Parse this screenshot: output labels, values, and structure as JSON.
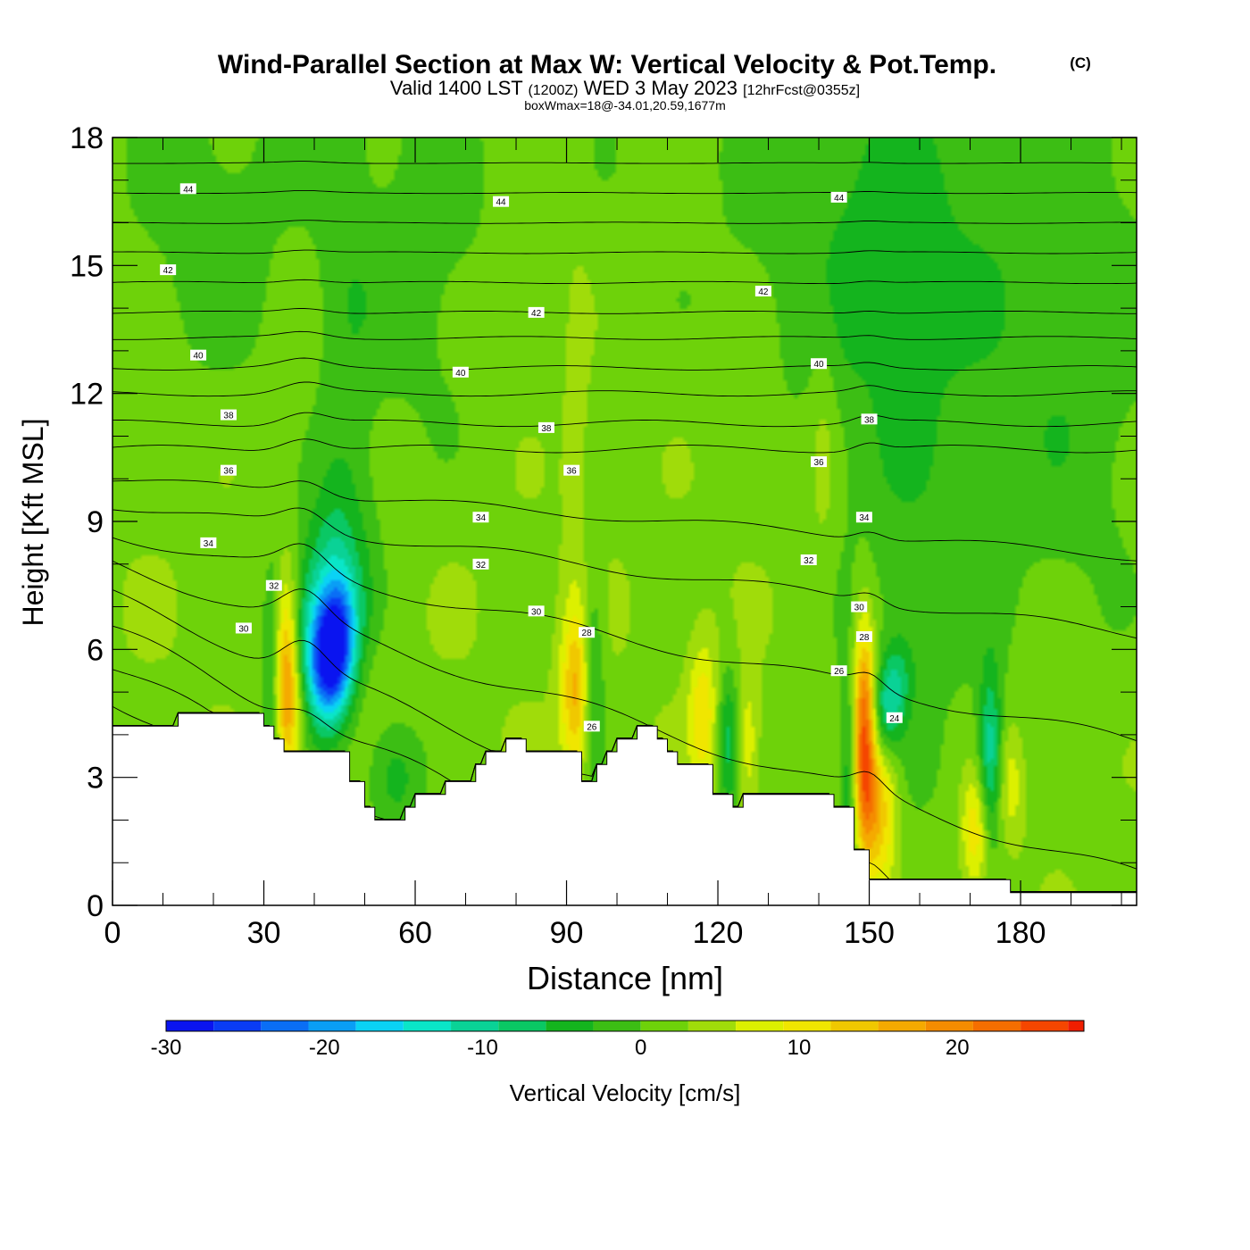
{
  "header": {
    "title_main": "Wind-Parallel Section at Max W: Vertical Velocity & Pot.Temp.",
    "title_mark": "(C)",
    "valid_prefix": "Valid 1400 LST",
    "valid_utc": "(1200Z)",
    "valid_date": "WED 3 May 2023",
    "valid_forecast": "[12hrFcst@0355z]",
    "box_line": "boxWmax=18@-34.01,20.59,1677m"
  },
  "colorbar": {
    "label": "Vertical Velocity [cm/s]",
    "min": -30,
    "max": 28,
    "step": 3,
    "ticks": [
      "-30",
      "-20",
      "-10",
      "0",
      "10",
      "20"
    ],
    "tick_values": [
      -30,
      -20,
      -10,
      0,
      10,
      20
    ],
    "colors": [
      "#0a14f0",
      "#0a3cf5",
      "#0a6ef5",
      "#0a9ef5",
      "#0ad2f5",
      "#0ae6c8",
      "#0ad296",
      "#0ac864",
      "#14b41e",
      "#3cbe14",
      "#6ed20a",
      "#a0dc0a",
      "#dcf000",
      "#f0e600",
      "#f0c800",
      "#f5aa00",
      "#f58c00",
      "#f56e00",
      "#f54600",
      "#f01e00",
      "#e10a0a",
      "#c8002d"
    ]
  },
  "chart_data": {
    "type": "contour",
    "xlabel": "Distance [nm]",
    "ylabel": "Height [Kft MSL]",
    "xlim": [
      0,
      203
    ],
    "ylim": [
      0,
      18
    ],
    "x_ticks": [
      "0",
      "30",
      "60",
      "90",
      "120",
      "150",
      "180"
    ],
    "x_tick_values": [
      0,
      30,
      60,
      90,
      120,
      150,
      180
    ],
    "y_ticks": [
      "0",
      "3",
      "6",
      "9",
      "12",
      "15",
      "18"
    ],
    "y_tick_values": [
      0,
      3,
      6,
      9,
      12,
      15,
      18
    ],
    "terrain_kft": [
      [
        0,
        4.2
      ],
      [
        13,
        4.2
      ],
      [
        13,
        4.5
      ],
      [
        30,
        4.5
      ],
      [
        30,
        4.2
      ],
      [
        32,
        4.2
      ],
      [
        32,
        3.9
      ],
      [
        34,
        3.9
      ],
      [
        34,
        3.6
      ],
      [
        47,
        3.6
      ],
      [
        47,
        2.9
      ],
      [
        50,
        2.9
      ],
      [
        50,
        2.3
      ],
      [
        52,
        2.3
      ],
      [
        52,
        2.0
      ],
      [
        58,
        2.0
      ],
      [
        58,
        2.3
      ],
      [
        60,
        2.3
      ],
      [
        60,
        2.6
      ],
      [
        66,
        2.6
      ],
      [
        66,
        2.9
      ],
      [
        72,
        2.9
      ],
      [
        72,
        3.3
      ],
      [
        74,
        3.3
      ],
      [
        74,
        3.6
      ],
      [
        78,
        3.6
      ],
      [
        78,
        3.9
      ],
      [
        82,
        3.9
      ],
      [
        82,
        3.6
      ],
      [
        93,
        3.6
      ],
      [
        93,
        2.9
      ],
      [
        96,
        2.9
      ],
      [
        96,
        3.3
      ],
      [
        98,
        3.3
      ],
      [
        98,
        3.6
      ],
      [
        100,
        3.6
      ],
      [
        100,
        3.9
      ],
      [
        104,
        3.9
      ],
      [
        104,
        4.2
      ],
      [
        108,
        4.2
      ],
      [
        108,
        3.9
      ],
      [
        110,
        3.9
      ],
      [
        110,
        3.6
      ],
      [
        112,
        3.6
      ],
      [
        112,
        3.3
      ],
      [
        119,
        3.3
      ],
      [
        119,
        2.6
      ],
      [
        123,
        2.6
      ],
      [
        123,
        2.3
      ],
      [
        125,
        2.3
      ],
      [
        125,
        2.6
      ],
      [
        143,
        2.6
      ],
      [
        143,
        2.3
      ],
      [
        147,
        2.3
      ],
      [
        147,
        1.3
      ],
      [
        150,
        1.3
      ],
      [
        150,
        0.6
      ],
      [
        178,
        0.6
      ],
      [
        178,
        0.3
      ],
      [
        203,
        0.3
      ]
    ],
    "theta_lines": [
      {
        "label": "24",
        "base": 1.4,
        "slope": 0.035,
        "scale": 1.0
      },
      {
        "label": "",
        "base": 2.1,
        "slope": 0.035,
        "scale": 1.0
      },
      {
        "label": "",
        "base": 2.8,
        "slope": 0.033,
        "scale": 1.0
      },
      {
        "label": "26",
        "base": 3.5,
        "slope": 0.03,
        "scale": 1.0
      },
      {
        "label": "",
        "base": 4.2,
        "slope": 0.028,
        "scale": 1.0
      },
      {
        "label": "28",
        "base": 4.9,
        "slope": 0.025,
        "scale": 1.0
      },
      {
        "label": "",
        "base": 5.6,
        "slope": 0.022,
        "scale": 1.0
      },
      {
        "label": "30",
        "base": 6.4,
        "slope": 0.018,
        "scale": 0.9
      },
      {
        "label": "",
        "base": 7.2,
        "slope": 0.015,
        "scale": 0.8
      },
      {
        "label": "32",
        "base": 8.0,
        "slope": 0.012,
        "scale": 0.7
      },
      {
        "label": "",
        "base": 8.7,
        "slope": 0.008,
        "scale": 0.6
      },
      {
        "label": "34",
        "base": 9.4,
        "slope": 0.005,
        "scale": 0.5
      },
      {
        "label": "",
        "base": 10.0,
        "slope": 0.003,
        "scale": 0.4
      },
      {
        "label": "36",
        "base": 10.7,
        "slope": 0.0,
        "scale": 0.35
      },
      {
        "label": "",
        "base": 11.3,
        "slope": 0.0,
        "scale": 0.3
      },
      {
        "label": "38",
        "base": 12.0,
        "slope": 0.0,
        "scale": 0.25
      },
      {
        "label": "",
        "base": 12.6,
        "slope": 0.0,
        "scale": 0.2
      },
      {
        "label": "40",
        "base": 13.3,
        "slope": 0.0,
        "scale": 0.15
      },
      {
        "label": "",
        "base": 13.9,
        "slope": 0.0,
        "scale": 0.12
      },
      {
        "label": "42",
        "base": 14.6,
        "slope": 0.0,
        "scale": 0.1
      },
      {
        "label": "",
        "base": 15.3,
        "slope": 0.0,
        "scale": 0.08
      },
      {
        "label": "44",
        "base": 16.0,
        "slope": 0.0,
        "scale": 0.06
      },
      {
        "label": "",
        "base": 16.7,
        "slope": 0.0,
        "scale": 0.05
      },
      {
        "label": "",
        "base": 17.4,
        "slope": 0.0,
        "scale": 0.04
      }
    ],
    "theta_labels": [
      {
        "text": "44",
        "x": 15,
        "y": 16.8
      },
      {
        "text": "44",
        "x": 77,
        "y": 16.5
      },
      {
        "text": "44",
        "x": 144,
        "y": 16.6
      },
      {
        "text": "42",
        "x": 11,
        "y": 14.9
      },
      {
        "text": "42",
        "x": 84,
        "y": 13.9
      },
      {
        "text": "42",
        "x": 129,
        "y": 14.4
      },
      {
        "text": "40",
        "x": 17,
        "y": 12.9
      },
      {
        "text": "40",
        "x": 69,
        "y": 12.5
      },
      {
        "text": "40",
        "x": 140,
        "y": 12.7
      },
      {
        "text": "38",
        "x": 23,
        "y": 11.5
      },
      {
        "text": "38",
        "x": 86,
        "y": 11.2
      },
      {
        "text": "38",
        "x": 150,
        "y": 11.4
      },
      {
        "text": "36",
        "x": 23,
        "y": 10.2
      },
      {
        "text": "36",
        "x": 91,
        "y": 10.2
      },
      {
        "text": "36",
        "x": 140,
        "y": 10.4
      },
      {
        "text": "34",
        "x": 19,
        "y": 8.5
      },
      {
        "text": "34",
        "x": 73,
        "y": 9.1
      },
      {
        "text": "34",
        "x": 149,
        "y": 9.1
      },
      {
        "text": "32",
        "x": 32,
        "y": 7.5
      },
      {
        "text": "32",
        "x": 73,
        "y": 8.0
      },
      {
        "text": "32",
        "x": 138,
        "y": 8.1
      },
      {
        "text": "30",
        "x": 26,
        "y": 6.5
      },
      {
        "text": "30",
        "x": 84,
        "y": 6.9
      },
      {
        "text": "30",
        "x": 148,
        "y": 7.0
      },
      {
        "text": "28",
        "x": 94,
        "y": 6.4
      },
      {
        "text": "28",
        "x": 149,
        "y": 6.3
      },
      {
        "text": "26",
        "x": 144,
        "y": 5.5
      },
      {
        "text": "26",
        "x": 95,
        "y": 4.2
      },
      {
        "text": "24",
        "x": 155,
        "y": 4.4
      }
    ],
    "w_features": [
      {
        "x": 44,
        "y": 5.9,
        "sx": 3.5,
        "sy": 1.2,
        "w": -30,
        "tilt": 0.3
      },
      {
        "x": 41,
        "y": 6.6,
        "sx": 5.0,
        "sy": 2.0,
        "w": -14,
        "tilt": 0.3
      },
      {
        "x": 32,
        "y": 5.2,
        "sx": 1.5,
        "sy": 2.0,
        "w": -12,
        "tilt": 0
      },
      {
        "x": 34,
        "y": 5.3,
        "sx": 2.0,
        "sy": 1.6,
        "w": 22,
        "tilt": 0
      },
      {
        "x": 38,
        "y": 4.6,
        "sx": 3.5,
        "sy": 1.0,
        "w": 10,
        "tilt": 0
      },
      {
        "x": 48,
        "y": 6.7,
        "sx": 2.5,
        "sy": 1.2,
        "w": 7,
        "tilt": 0
      },
      {
        "x": 56,
        "y": 3.0,
        "sx": 4.0,
        "sy": 1.0,
        "w": -7,
        "tilt": 0
      },
      {
        "x": 92,
        "y": 5.0,
        "sx": 2.2,
        "sy": 1.4,
        "w": 14,
        "tilt": 0
      },
      {
        "x": 95,
        "y": 5.2,
        "sx": 1.6,
        "sy": 1.8,
        "w": -9,
        "tilt": 0
      },
      {
        "x": 117,
        "y": 4.5,
        "sx": 2.0,
        "sy": 1.2,
        "w": 9,
        "tilt": 0
      },
      {
        "x": 122,
        "y": 3.8,
        "sx": 1.5,
        "sy": 1.2,
        "w": -9,
        "tilt": 0
      },
      {
        "x": 126,
        "y": 3.8,
        "sx": 1.5,
        "sy": 1.2,
        "w": 6,
        "tilt": 0
      },
      {
        "x": 149,
        "y": 4.0,
        "sx": 1.6,
        "sy": 1.8,
        "w": 24,
        "tilt": 0
      },
      {
        "x": 146,
        "y": 3.0,
        "sx": 1.2,
        "sy": 1.8,
        "w": -8,
        "tilt": 0
      },
      {
        "x": 154,
        "y": 4.8,
        "sx": 2.5,
        "sy": 0.9,
        "w": -12,
        "tilt": 0.3
      },
      {
        "x": 152,
        "y": 2.3,
        "sx": 2.5,
        "sy": 1.3,
        "w": 13,
        "tilt": 0
      },
      {
        "x": 174,
        "y": 3.5,
        "sx": 1.6,
        "sy": 1.4,
        "w": -13,
        "tilt": 0
      },
      {
        "x": 171,
        "y": 1.7,
        "sx": 2.0,
        "sy": 1.0,
        "w": 10,
        "tilt": 0
      },
      {
        "x": 178,
        "y": 2.8,
        "sx": 2.0,
        "sy": 1.0,
        "w": 6,
        "tilt": 0
      },
      {
        "x": 158,
        "y": 9.0,
        "sx": 12,
        "sy": 6,
        "w": -4,
        "tilt": 0
      },
      {
        "x": 150,
        "y": 15.5,
        "sx": 18,
        "sy": 3.0,
        "w": -4,
        "tilt": 0
      },
      {
        "x": 190,
        "y": 12,
        "sx": 12,
        "sy": 5,
        "w": -4,
        "tilt": 0
      },
      {
        "x": 60,
        "y": 14.5,
        "sx": 10,
        "sy": 3.0,
        "w": -3,
        "tilt": 0
      },
      {
        "x": 20,
        "y": 15.5,
        "sx": 10,
        "sy": 2.5,
        "w": -3,
        "tilt": 0
      },
      {
        "x": 46,
        "y": 12.5,
        "sx": 4,
        "sy": 5,
        "w": -3,
        "tilt": 0
      },
      {
        "x": 92,
        "y": 11.5,
        "sx": 2,
        "sy": 3,
        "w": 2.5,
        "tilt": 0
      },
      {
        "x": 141,
        "y": 11.0,
        "sx": 2,
        "sy": 2.5,
        "w": 3,
        "tilt": 0
      }
    ]
  }
}
